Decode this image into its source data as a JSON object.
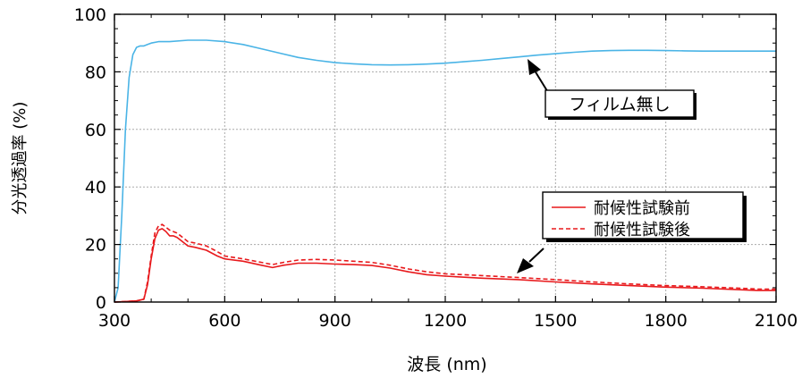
{
  "chart_data": {
    "type": "line",
    "xlabel": "波長 (nm)",
    "ylabel": "分光透過率 (%)",
    "xlim": [
      300,
      2100
    ],
    "ylim": [
      0,
      100
    ],
    "xticks": [
      300,
      600,
      900,
      1200,
      1500,
      1800,
      2100
    ],
    "yticks": [
      0,
      20,
      40,
      60,
      80,
      100
    ],
    "grid": true,
    "legend_position": "right-middle",
    "colors": {
      "film_none": "#4ab4e6",
      "series": "#e8191c",
      "axis": "#000000",
      "grid": "#aaaaaa"
    },
    "annotations": [
      {
        "text": "フィルム無し",
        "arrow_to": [
          1420,
          85
        ]
      },
      {
        "arrow_to": [
          1340,
          9
        ]
      }
    ],
    "series": [
      {
        "key": "film_none",
        "name": "フィルム無し",
        "color": "#4ab4e6",
        "style": "solid",
        "x": [
          300,
          310,
          320,
          330,
          340,
          350,
          360,
          370,
          380,
          390,
          400,
          420,
          450,
          500,
          550,
          600,
          650,
          700,
          750,
          800,
          850,
          900,
          950,
          1000,
          1050,
          1100,
          1150,
          1200,
          1250,
          1300,
          1350,
          1400,
          1450,
          1500,
          1550,
          1600,
          1650,
          1700,
          1750,
          1800,
          1850,
          1900,
          1950,
          2000,
          2050,
          2100
        ],
        "y": [
          0,
          5,
          30,
          60,
          78,
          86,
          88.5,
          89,
          89,
          89.5,
          90,
          90.5,
          90.5,
          91,
          91,
          90.5,
          89.5,
          88,
          86.5,
          85,
          84,
          83.2,
          82.8,
          82.5,
          82.4,
          82.5,
          82.7,
          83,
          83.5,
          84,
          84.6,
          85.2,
          85.8,
          86.3,
          86.8,
          87.2,
          87.4,
          87.5,
          87.5,
          87.4,
          87.3,
          87.2,
          87.2,
          87.2,
          87.2,
          87.2
        ]
      },
      {
        "key": "before",
        "name": "耐候性試験前",
        "color": "#e8191c",
        "style": "solid",
        "x": [
          300,
          330,
          360,
          380,
          390,
          400,
          410,
          420,
          430,
          440,
          450,
          460,
          470,
          480,
          500,
          520,
          550,
          580,
          600,
          650,
          700,
          730,
          760,
          800,
          850,
          900,
          950,
          1000,
          1050,
          1100,
          1150,
          1200,
          1300,
          1400,
          1500,
          1600,
          1700,
          1800,
          1900,
          2000,
          2050,
          2100
        ],
        "y": [
          0,
          0.2,
          0.4,
          1,
          6,
          15,
          22,
          25,
          25.5,
          24.5,
          23,
          23,
          22.5,
          21.5,
          19.5,
          19,
          18,
          16,
          15,
          14.2,
          12.8,
          12,
          12.8,
          13.5,
          13.5,
          13.2,
          13,
          12.7,
          11.8,
          10.5,
          9.5,
          9,
          8.3,
          7.8,
          7,
          6.3,
          5.7,
          5.2,
          4.8,
          4.3,
          4,
          4
        ]
      },
      {
        "key": "after",
        "name": "耐候性試験後",
        "color": "#e8191c",
        "style": "dashed",
        "x": [
          300,
          330,
          360,
          380,
          390,
          400,
          410,
          420,
          430,
          440,
          450,
          460,
          470,
          480,
          500,
          520,
          550,
          580,
          600,
          650,
          700,
          730,
          760,
          800,
          850,
          900,
          950,
          1000,
          1050,
          1100,
          1150,
          1200,
          1300,
          1400,
          1500,
          1600,
          1700,
          1800,
          1900,
          2000,
          2050,
          2100
        ],
        "y": [
          0,
          0.2,
          0.4,
          1,
          7,
          16,
          24,
          26.5,
          27,
          26,
          25,
          24.5,
          24,
          23,
          21,
          20.5,
          19.5,
          17.5,
          16,
          15,
          13.8,
          13,
          13.8,
          14.6,
          14.8,
          14.6,
          14.2,
          13.8,
          12.8,
          11.5,
          10.5,
          9.8,
          9.2,
          8.5,
          7.8,
          7,
          6.3,
          5.7,
          5.3,
          4.8,
          4.5,
          4.5
        ]
      }
    ]
  }
}
